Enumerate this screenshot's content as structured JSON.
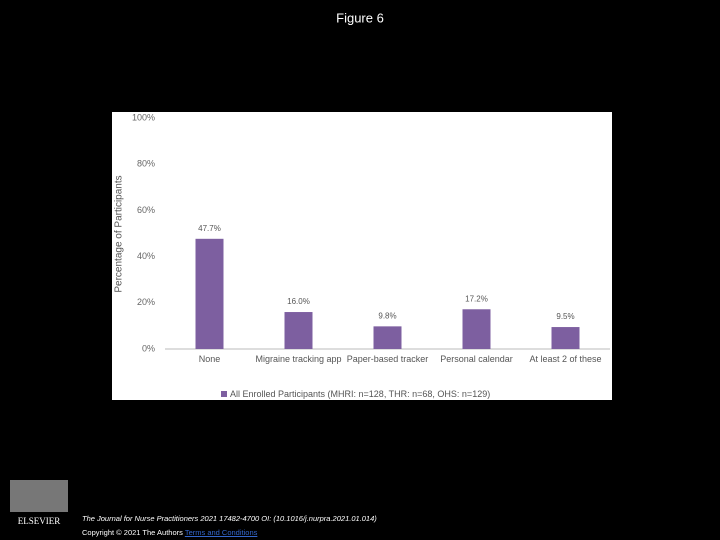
{
  "header": {
    "title": "Figure 6"
  },
  "chart_data": {
    "type": "bar",
    "ylabel": "Percentage of Participants",
    "categories": [
      "None",
      "Migraine tracking app",
      "Paper-based tracker",
      "Personal calendar",
      "At least 2 of these"
    ],
    "series": [
      {
        "name": "All Enrolled Participants (MHRI: n=128, THR: n=68, OHS: n=129)",
        "color": "#7d5fa0",
        "values": [
          47.7,
          16.0,
          9.8,
          17.2,
          9.5
        ],
        "value_labels": [
          "47.7%",
          "16.0%",
          "9.8%",
          "17.2%",
          "9.5%"
        ]
      }
    ],
    "ylim": [
      0,
      100
    ],
    "yticks": [
      {
        "value": 0,
        "label": "0%"
      },
      {
        "value": 20,
        "label": "20%"
      },
      {
        "value": 40,
        "label": "40%"
      },
      {
        "value": 60,
        "label": "60%"
      },
      {
        "value": 80,
        "label": "80%"
      },
      {
        "value": 100,
        "label": "100%"
      }
    ],
    "grid": false,
    "legend": "bottom"
  },
  "footer": {
    "publisher": "ELSEVIER",
    "citation": "The Journal for Nurse Practitioners 2021 17482-4700 OI: (10.1016/j.nurpra.2021.01.014)",
    "copyright": "Copyright © 2021 The Authors",
    "link": "Terms and Conditions"
  }
}
